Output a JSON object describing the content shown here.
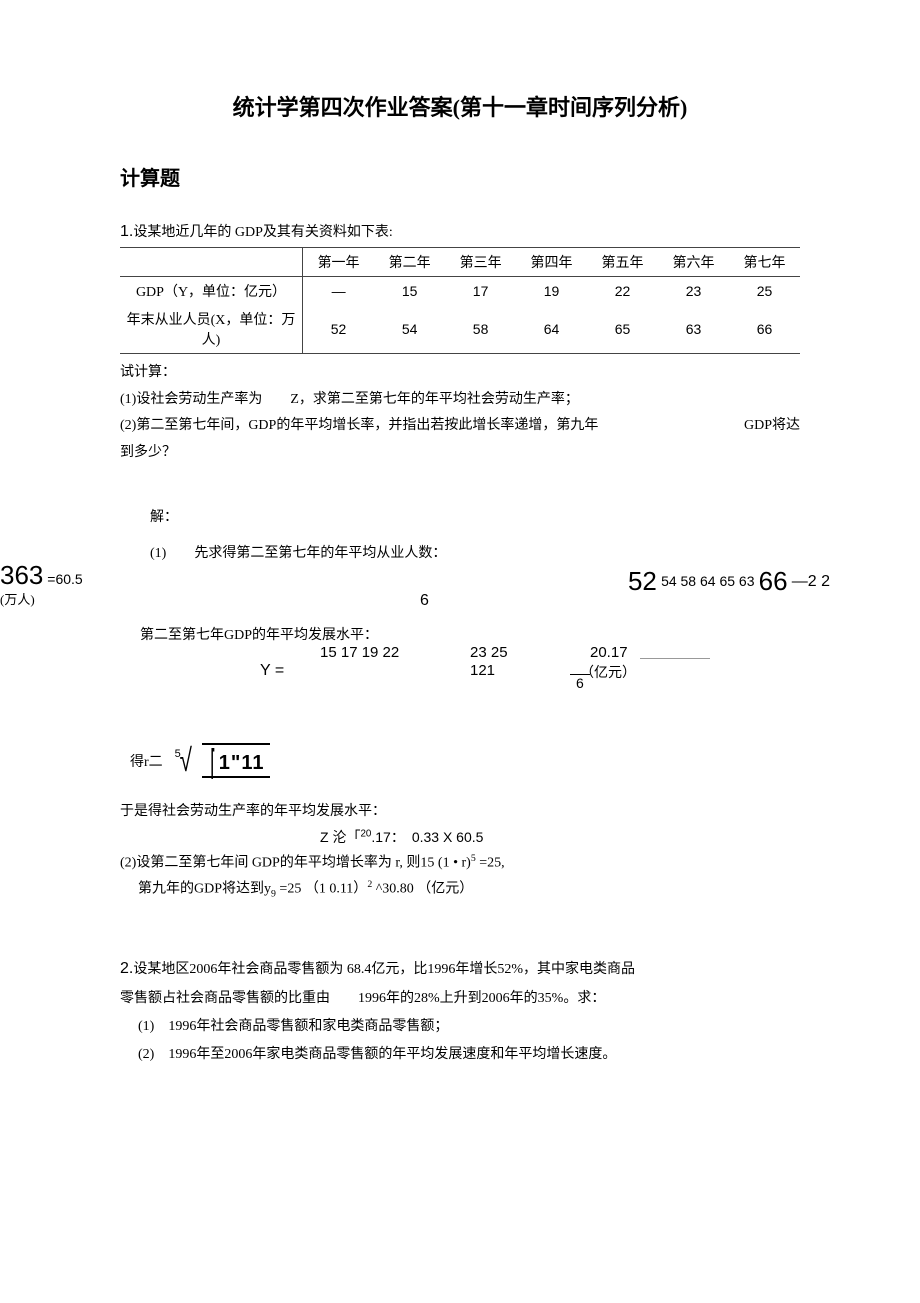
{
  "title": "统计学第四次作业答案(第十一章时间序列分析)",
  "section": "计算题",
  "p1": {
    "intro_num": "1.",
    "intro_text": "设某地近几年的 GDP及其有关资料如下表:",
    "table": {
      "cols": [
        "",
        "第一年",
        "第二年",
        "第三年",
        "第四年",
        "第五年",
        "第六年",
        "第七年"
      ],
      "row1_label": "GDP（Y，单位：亿元）",
      "row1": [
        "—",
        "15",
        "17",
        "19",
        "22",
        "23",
        "25"
      ],
      "row2_label": "年末从业人员(X，单位：万人)",
      "row2": [
        "52",
        "54",
        "58",
        "64",
        "65",
        "63",
        "66"
      ]
    },
    "calc_label": "试计算：",
    "q1": "(1)设社会劳动生产率为　　Z，求第二至第七年的年平均社会劳动生产率；",
    "q2a": "(2)第二至第七年间，GDP的年平均增长率，并指出若按此增长率递增，第九年",
    "q2b": "GDP将达",
    "q2c": "到多少？",
    "sol_label": "解：",
    "step1": "(1)　　先求得第二至第七年的年平均从业人数：",
    "leftfrac": {
      "num": "363",
      "eq": "=60.5",
      "unit": "(万人)"
    },
    "eq_six": "6",
    "eq_rhs": {
      "a": "52",
      "mid": "54 58 64 65 63",
      "b": "66",
      "tail": "—2 2"
    },
    "sub1": "第二至第七年GDP的年平均发展水平：",
    "ybar": {
      "label": "Y =",
      "nums1": "15 17 19 22",
      "nums2": "23 25",
      "n121": "121",
      "avg": "20.17",
      "unit": "（亿元）",
      "six": "6"
    },
    "root_prefix": "得r二",
    "root_idx": "5",
    "radicand": "1\"11",
    "concl1": "于是得社会劳动生产率的年平均发展水平：",
    "concl2": "Z 沦「20.17：　0.33 X 60.5",
    "concl3": "(2)设第二至第七年间 GDP的年平均增长率为 r, 则15 (1 • r)5 =25,",
    "concl4": "第九年的GDP将达到y9 =25 （1 0.11）2 ^30.80 （亿元）"
  },
  "p2": {
    "lead_num": "2.",
    "lead": "设某地区2006年社会商品零售额为 68.4亿元，比1996年增长52%，其中家电类商品",
    "line2": "零售额占社会商品零售额的比重由　　1996年的28%上升到2006年的35%。求：",
    "q1": "(1)　1996年社会商品零售额和家电类商品零售额；",
    "q2": "(2)　1996年至2006年家电类商品零售额的年平均发展速度和年平均增长速度。"
  }
}
